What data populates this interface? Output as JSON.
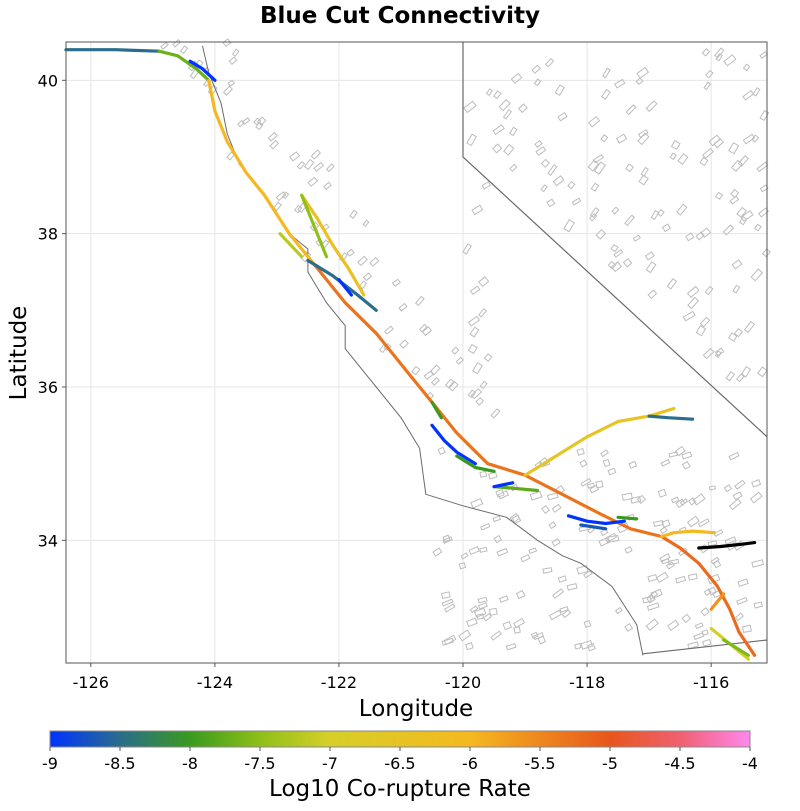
{
  "title": "Blue Cut Connectivity",
  "xlabel": "Longitude",
  "ylabel": "Latitude",
  "x_ticks": [
    {
      "value": -126,
      "label": "-126"
    },
    {
      "value": -124,
      "label": "-124"
    },
    {
      "value": -122,
      "label": "-122"
    },
    {
      "value": -120,
      "label": "-120"
    },
    {
      "value": -118,
      "label": "-118"
    },
    {
      "value": -116,
      "label": "-116"
    }
  ],
  "y_ticks": [
    {
      "value": 34,
      "label": "34"
    },
    {
      "value": 36,
      "label": "36"
    },
    {
      "value": 38,
      "label": "38"
    },
    {
      "value": 40,
      "label": "40"
    }
  ],
  "colorbar": {
    "label": "Log10 Co-rupture Rate",
    "range": [
      -9,
      -4
    ],
    "ticks": [
      {
        "value": -9,
        "label": "-9"
      },
      {
        "value": -8.5,
        "label": "-8.5"
      },
      {
        "value": -8,
        "label": "-8"
      },
      {
        "value": -7.5,
        "label": "-7.5"
      },
      {
        "value": -7,
        "label": "-7"
      },
      {
        "value": -6.5,
        "label": "-6.5"
      },
      {
        "value": -6,
        "label": "-6"
      },
      {
        "value": -5.5,
        "label": "-5.5"
      },
      {
        "value": -5,
        "label": "-5"
      },
      {
        "value": -4.5,
        "label": "-4.5"
      },
      {
        "value": -4,
        "label": "-4"
      }
    ],
    "stops": [
      {
        "value": -9,
        "color": "#0033ff"
      },
      {
        "value": -8.5,
        "color": "#2a6d8c"
      },
      {
        "value": -8,
        "color": "#3a9a1e"
      },
      {
        "value": -7.5,
        "color": "#8fbf1a"
      },
      {
        "value": -7,
        "color": "#d6cf28"
      },
      {
        "value": -6,
        "color": "#f5b820"
      },
      {
        "value": -5,
        "color": "#e8561c"
      },
      {
        "value": -4.5,
        "color": "#f06070"
      },
      {
        "value": -4,
        "color": "#ff88ee"
      }
    ]
  },
  "chart_data": {
    "type": "map",
    "title": "Blue Cut Connectivity",
    "xlabel": "Longitude",
    "ylabel": "Latitude",
    "xlim": [
      -126.4,
      -115.1
    ],
    "ylim": [
      32.4,
      40.5
    ],
    "grid": true,
    "source_fault": {
      "color": "#000000",
      "points": [
        [
          -116.2,
          33.9
        ],
        [
          -115.85,
          33.92
        ],
        [
          -115.5,
          33.95
        ],
        [
          -115.3,
          33.97
        ]
      ]
    },
    "faults": [
      {
        "rate": -8.5,
        "points": [
          [
            -126.4,
            40.4
          ],
          [
            -125.6,
            40.4
          ],
          [
            -124.9,
            40.38
          ]
        ]
      },
      {
        "rate": -7.7,
        "points": [
          [
            -124.9,
            40.38
          ],
          [
            -124.6,
            40.32
          ],
          [
            -124.3,
            40.15
          ],
          [
            -124.1,
            40.0
          ]
        ]
      },
      {
        "rate": -9.0,
        "points": [
          [
            -124.4,
            40.25
          ],
          [
            -124.2,
            40.15
          ],
          [
            -124.0,
            40.0
          ]
        ]
      },
      {
        "rate": -6.0,
        "points": [
          [
            -124.1,
            40.0
          ],
          [
            -124.0,
            39.6
          ],
          [
            -123.8,
            39.2
          ],
          [
            -123.5,
            38.8
          ],
          [
            -123.2,
            38.5
          ],
          [
            -122.8,
            38.0
          ],
          [
            -122.4,
            37.6
          ]
        ]
      },
      {
        "rate": -7.2,
        "points": [
          [
            -122.95,
            38.0
          ],
          [
            -122.6,
            37.7
          ]
        ]
      },
      {
        "rate": -5.3,
        "points": [
          [
            -122.4,
            37.6
          ],
          [
            -121.9,
            37.1
          ],
          [
            -121.4,
            36.7
          ],
          [
            -120.9,
            36.2
          ],
          [
            -120.5,
            35.8
          ],
          [
            -120.1,
            35.4
          ],
          [
            -119.6,
            35.0
          ],
          [
            -119.0,
            34.85
          ],
          [
            -118.4,
            34.6
          ],
          [
            -117.8,
            34.35
          ],
          [
            -117.3,
            34.15
          ],
          [
            -116.8,
            34.05
          ]
        ]
      },
      {
        "rate": -5.2,
        "points": [
          [
            -116.8,
            34.05
          ],
          [
            -116.5,
            33.9
          ],
          [
            -116.2,
            33.7
          ],
          [
            -115.9,
            33.4
          ],
          [
            -115.7,
            33.1
          ],
          [
            -115.55,
            32.8
          ],
          [
            -115.3,
            32.5
          ]
        ]
      },
      {
        "rate": -6.3,
        "points": [
          [
            -122.6,
            38.5
          ],
          [
            -122.35,
            38.2
          ],
          [
            -122.1,
            37.85
          ],
          [
            -121.85,
            37.55
          ],
          [
            -121.6,
            37.2
          ]
        ]
      },
      {
        "rate": -7.5,
        "points": [
          [
            -122.6,
            38.5
          ],
          [
            -122.35,
            38.0
          ],
          [
            -122.2,
            37.7
          ]
        ]
      },
      {
        "rate": -8.5,
        "points": [
          [
            -122.5,
            37.65
          ],
          [
            -122.1,
            37.45
          ],
          [
            -121.7,
            37.2
          ],
          [
            -121.4,
            37.0
          ]
        ]
      },
      {
        "rate": -9.0,
        "points": [
          [
            -122.0,
            37.4
          ],
          [
            -121.8,
            37.2
          ]
        ]
      },
      {
        "rate": -8.0,
        "points": [
          [
            -120.5,
            35.8
          ],
          [
            -120.35,
            35.6
          ]
        ]
      },
      {
        "rate": -9.0,
        "points": [
          [
            -120.5,
            35.5
          ],
          [
            -120.3,
            35.3
          ],
          [
            -120.1,
            35.15
          ],
          [
            -119.8,
            35.0
          ]
        ]
      },
      {
        "rate": -8.0,
        "points": [
          [
            -120.1,
            35.1
          ],
          [
            -119.8,
            34.95
          ],
          [
            -119.5,
            34.9
          ]
        ]
      },
      {
        "rate": -7.8,
        "points": [
          [
            -119.5,
            34.7
          ],
          [
            -119.2,
            34.68
          ],
          [
            -118.8,
            34.65
          ]
        ]
      },
      {
        "rate": -9.0,
        "points": [
          [
            -119.5,
            34.7
          ],
          [
            -119.2,
            34.75
          ]
        ]
      },
      {
        "rate": -6.5,
        "points": [
          [
            -119.0,
            34.85
          ],
          [
            -118.5,
            35.1
          ],
          [
            -118.0,
            35.35
          ],
          [
            -117.5,
            35.55
          ],
          [
            -117.0,
            35.62
          ],
          [
            -116.6,
            35.72
          ]
        ]
      },
      {
        "rate": -8.5,
        "points": [
          [
            -117.0,
            35.62
          ],
          [
            -116.7,
            35.6
          ],
          [
            -116.3,
            35.58
          ]
        ]
      },
      {
        "rate": -9.0,
        "points": [
          [
            -118.3,
            34.32
          ],
          [
            -118.0,
            34.25
          ],
          [
            -117.7,
            34.22
          ],
          [
            -117.4,
            34.25
          ]
        ]
      },
      {
        "rate": -8.7,
        "points": [
          [
            -118.1,
            34.2
          ],
          [
            -117.7,
            34.15
          ]
        ]
      },
      {
        "rate": -8.0,
        "points": [
          [
            -117.5,
            34.3
          ],
          [
            -117.2,
            34.28
          ]
        ]
      },
      {
        "rate": -6.0,
        "points": [
          [
            -116.8,
            34.05
          ],
          [
            -116.6,
            34.1
          ],
          [
            -116.3,
            34.12
          ],
          [
            -115.95,
            34.1
          ]
        ]
      },
      {
        "rate": -5.6,
        "points": [
          [
            -116.0,
            33.1
          ],
          [
            -115.8,
            33.3
          ]
        ]
      },
      {
        "rate": -7.0,
        "points": [
          [
            -116.0,
            32.85
          ],
          [
            -115.7,
            32.65
          ],
          [
            -115.4,
            32.45
          ]
        ]
      },
      {
        "rate": -7.6,
        "points": [
          [
            -115.8,
            32.7
          ],
          [
            -115.4,
            32.5
          ]
        ]
      }
    ]
  }
}
